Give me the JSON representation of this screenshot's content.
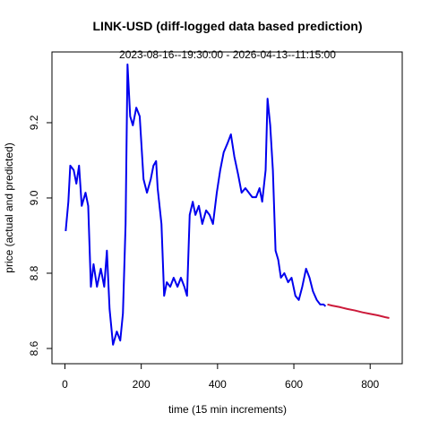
{
  "chart_data": {
    "type": "line",
    "title": "LINK-USD (diff-logged data based prediction)",
    "subtitle": "2023-08-16--19:30:00  -  2026-04-13--11:15:00",
    "x_label": "time (15 min increments)",
    "y_label": "price (actual and predicted)",
    "xlim": [
      -34,
      884
    ],
    "xticks": [
      0,
      200,
      400,
      600,
      800
    ],
    "ylim": [
      8.5595,
      9.388
    ],
    "yticks": [
      8.6,
      8.8,
      {
        "value": 9,
        "label": "9.0"
      },
      9.2
    ],
    "grid": false,
    "series": [
      {
        "color": "#0000ee",
        "x": [
          2,
          9,
          14,
          23,
          30,
          37,
          44,
          54,
          61,
          68,
          75,
          84,
          94,
          103,
          110,
          117,
          126,
          136,
          145,
          152,
          159,
          164,
          171,
          178,
          187,
          196,
          206,
          215,
          225,
          232,
          239,
          243,
          253,
          260,
          267,
          276,
          285,
          295,
          304,
          313,
          320,
          327,
          335,
          342,
          351,
          360,
          370,
          379,
          388,
          398,
          407,
          416,
          426,
          435,
          444,
          454,
          463,
          473,
          482,
          491,
          501,
          510,
          517,
          526,
          531,
          538,
          545,
          552,
          559,
          566,
          575,
          585,
          594,
          604,
          613,
          622,
          632,
          641,
          650,
          660,
          669,
          678,
          683
        ],
        "values": [
          8.912,
          8.99,
          9.086,
          9.074,
          9.038,
          9.086,
          8.979,
          9.014,
          8.979,
          8.764,
          8.824,
          8.764,
          8.812,
          8.764,
          8.86,
          8.705,
          8.61,
          8.645,
          8.621,
          8.693,
          8.931,
          9.355,
          9.217,
          9.193,
          9.24,
          9.217,
          9.05,
          9.014,
          9.05,
          9.086,
          9.098,
          9.026,
          8.931,
          8.74,
          8.776,
          8.764,
          8.788,
          8.764,
          8.788,
          8.764,
          8.74,
          8.955,
          8.99,
          8.955,
          8.979,
          8.931,
          8.967,
          8.955,
          8.931,
          9.014,
          9.074,
          9.121,
          9.145,
          9.169,
          9.11,
          9.062,
          9.014,
          9.026,
          9.014,
          9.002,
          9.002,
          9.026,
          8.99,
          9.074,
          9.264,
          9.193,
          9.074,
          8.86,
          8.836,
          8.788,
          8.8,
          8.776,
          8.788,
          8.74,
          8.729,
          8.764,
          8.812,
          8.788,
          8.752,
          8.729,
          8.717,
          8.717,
          8.712
        ]
      },
      {
        "color": "#cc1a3a",
        "x": [
          688,
          700,
          720,
          740,
          760,
          780,
          800,
          820,
          840,
          850
        ],
        "values": [
          8.717,
          8.714,
          8.71,
          8.705,
          8.701,
          8.696,
          8.692,
          8.688,
          8.683,
          8.681
        ]
      }
    ]
  }
}
